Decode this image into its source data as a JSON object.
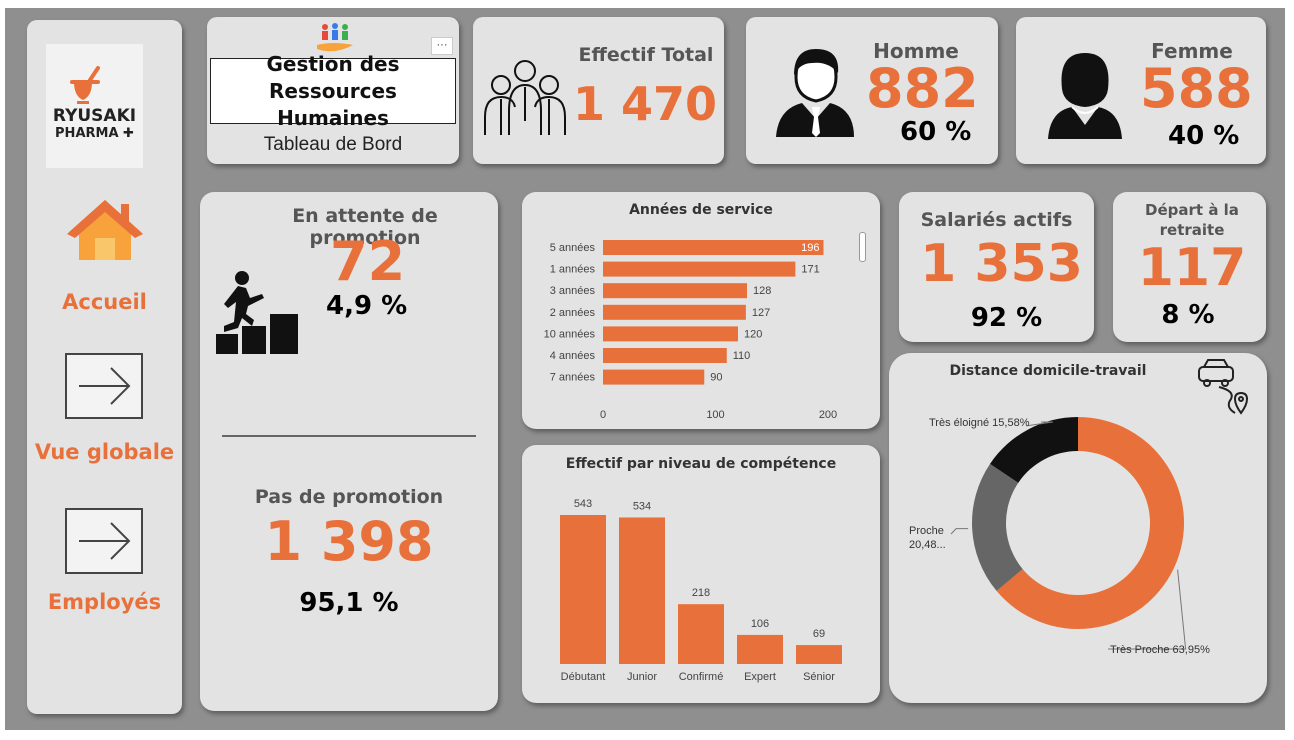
{
  "nav": {
    "logo": {
      "line1": "RYUSAKI",
      "line2": "PHARMA"
    },
    "items": [
      {
        "label": "Accueil",
        "icon": "house-icon"
      },
      {
        "label": "Vue globale",
        "icon": "arrow-right-icon"
      },
      {
        "label": "Employés",
        "icon": "arrow-right-icon"
      }
    ]
  },
  "header": {
    "title": "Gestion des Ressources Humaines",
    "subtitle": "Tableau de Bord",
    "more_label": "···"
  },
  "kpi": {
    "total": {
      "title": "Effectif Total",
      "value": "1 470"
    },
    "homme": {
      "title": "Homme",
      "value": "882",
      "pct": "60 %"
    },
    "femme": {
      "title": "Femme",
      "value": "588",
      "pct": "40 %"
    },
    "attente": {
      "title": "En attente de promotion",
      "value": "72",
      "pct": "4,9 %"
    },
    "pas_promo": {
      "title": "Pas de promotion",
      "value": "1 398",
      "pct": "95,1 %"
    },
    "actifs": {
      "title": "Salariés actifs",
      "value": "1 353",
      "pct": "92 %"
    },
    "retraite": {
      "title": "Départ à la retraite",
      "value": "117",
      "pct": "8 %"
    }
  },
  "colors": {
    "accent": "#e8703a",
    "card": "#e3e3e3",
    "background": "#8f8f8f"
  },
  "chart_data": [
    {
      "type": "bar",
      "orientation": "horizontal",
      "title": "Années de service",
      "categories": [
        "5 années",
        "1 années",
        "3 années",
        "2 années",
        "10 années",
        "4 années",
        "7 années"
      ],
      "values": [
        196,
        171,
        128,
        127,
        120,
        110,
        90
      ],
      "xlim": [
        0,
        200
      ],
      "xticks": [
        "0",
        "100",
        "200"
      ]
    },
    {
      "type": "bar",
      "title": "Effectif par niveau de compétence",
      "categories": [
        "Débutant",
        "Junior",
        "Confirmé",
        "Expert",
        "Sénior"
      ],
      "values": [
        543,
        534,
        218,
        106,
        69
      ]
    },
    {
      "type": "pie",
      "title": "Distance domicile-travail",
      "slices": [
        {
          "label": "Très Proche",
          "value": 63.95,
          "label_text": "Très Proche 63,95%",
          "color": "#e8703a"
        },
        {
          "label": "Proche",
          "value": 20.48,
          "label_text": "Proche 20,48...",
          "color": "#666666"
        },
        {
          "label": "Très éloigné",
          "value": 15.58,
          "label_text": "Très éloigné 15,58%",
          "color": "#111111"
        }
      ]
    }
  ]
}
